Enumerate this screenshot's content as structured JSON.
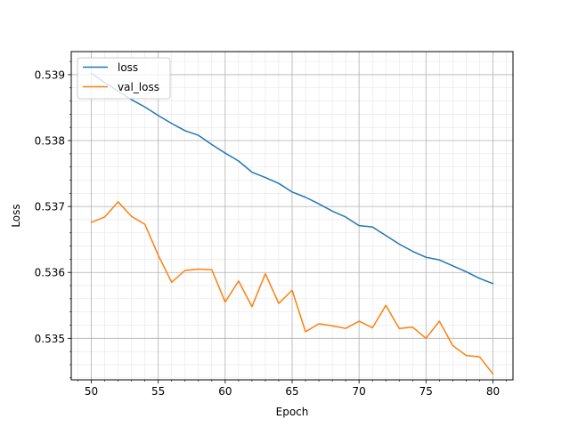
{
  "chart_data": {
    "type": "line",
    "title": "",
    "xlabel": "Epoch",
    "ylabel": "Loss",
    "xlim": [
      48.5,
      81.5
    ],
    "ylim": [
      0.53437,
      0.53935
    ],
    "x_ticks": [
      50,
      55,
      60,
      65,
      70,
      75,
      80
    ],
    "x_tick_labels": [
      "50",
      "55",
      "60",
      "65",
      "70",
      "75",
      "80"
    ],
    "y_ticks": [
      0.535,
      0.536,
      0.537,
      0.538,
      0.539
    ],
    "y_tick_labels": [
      "0.535",
      "0.536",
      "0.537",
      "0.538",
      "0.539"
    ],
    "grid": {
      "major": true,
      "minor": true
    },
    "legend_position": "top-left",
    "x": [
      50,
      51,
      52,
      53,
      54,
      55,
      56,
      57,
      58,
      59,
      60,
      61,
      62,
      63,
      64,
      65,
      66,
      67,
      68,
      69,
      70,
      71,
      72,
      73,
      74,
      75,
      76,
      77,
      78,
      79,
      80
    ],
    "series": [
      {
        "name": "loss",
        "color": "#1f77b4",
        "values": [
          0.53902,
          0.53888,
          0.53875,
          0.53862,
          0.53851,
          0.53838,
          0.53826,
          0.53815,
          0.53808,
          0.53794,
          0.53781,
          0.53769,
          0.53752,
          0.53744,
          0.53735,
          0.53722,
          0.53714,
          0.53704,
          0.53693,
          0.53684,
          0.53671,
          0.53669,
          0.53656,
          0.53643,
          0.53632,
          0.53623,
          0.53619,
          0.5361,
          0.53601,
          0.53591,
          0.53583
        ]
      },
      {
        "name": "val_loss",
        "color": "#ff7f0e",
        "values": [
          0.53676,
          0.53684,
          0.53707,
          0.53685,
          0.53673,
          0.53626,
          0.53585,
          0.53603,
          0.53605,
          0.53604,
          0.53555,
          0.53587,
          0.53548,
          0.53598,
          0.53553,
          0.53573,
          0.5351,
          0.53522,
          0.53519,
          0.53515,
          0.53526,
          0.53516,
          0.5355,
          0.53515,
          0.53517,
          0.535,
          0.53526,
          0.53489,
          0.53474,
          0.53472,
          0.53446
        ]
      }
    ]
  }
}
